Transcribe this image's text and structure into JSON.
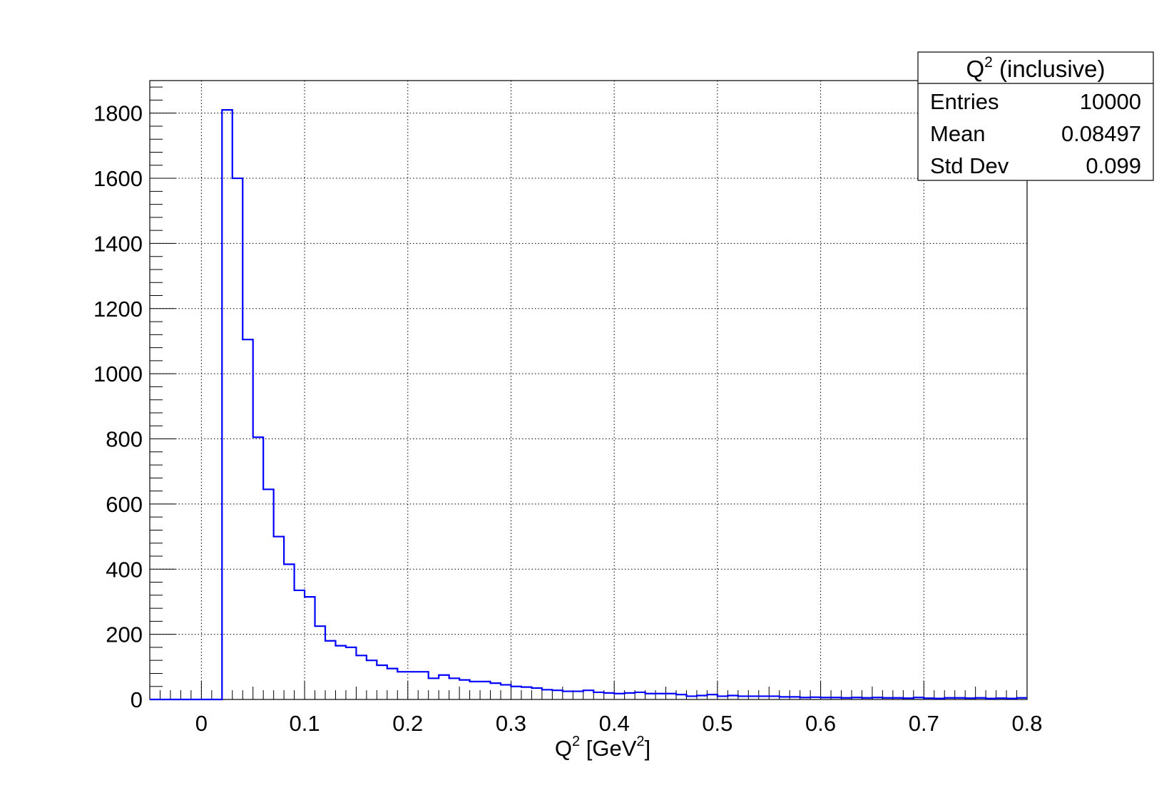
{
  "chart_data": {
    "type": "bar",
    "style": "step-histogram",
    "line_color": "#0000ff",
    "xlabel": "Q",
    "xlabel_sup": "2",
    "xlabel_unit_prefix": " [GeV",
    "xlabel_unit_sup": "2",
    "xlabel_unit_suffix": "]",
    "xlim": [
      -0.05,
      0.8
    ],
    "ylim": [
      0,
      1900
    ],
    "x_ticks": [
      "0",
      "0.1",
      "0.2",
      "0.3",
      "0.4",
      "0.5",
      "0.6",
      "0.7",
      "0.8"
    ],
    "x_tick_values": [
      0,
      0.1,
      0.2,
      0.3,
      0.4,
      0.5,
      0.6,
      0.7,
      0.8
    ],
    "y_ticks": [
      "0",
      "200",
      "400",
      "600",
      "800",
      "1000",
      "1200",
      "1400",
      "1600",
      "1800"
    ],
    "y_tick_values": [
      0,
      200,
      400,
      600,
      800,
      1000,
      1200,
      1400,
      1600,
      1800
    ],
    "grid": true,
    "bin_start": -0.05,
    "bin_width": 0.01,
    "values": [
      0,
      0,
      0,
      0,
      0,
      0,
      0,
      1810,
      1600,
      1105,
      805,
      645,
      500,
      415,
      335,
      315,
      225,
      180,
      165,
      160,
      135,
      120,
      105,
      95,
      85,
      85,
      85,
      65,
      75,
      65,
      60,
      55,
      55,
      50,
      45,
      40,
      38,
      35,
      30,
      28,
      25,
      25,
      28,
      22,
      20,
      18,
      20,
      22,
      18,
      18,
      18,
      15,
      10,
      12,
      15,
      10,
      12,
      10,
      10,
      10,
      10,
      8,
      8,
      6,
      7,
      6,
      6,
      5,
      6,
      5,
      6,
      5,
      5,
      4,
      6,
      4,
      3,
      5,
      5,
      4,
      5,
      3,
      4,
      3,
      5
    ]
  },
  "stats_box": {
    "title_main": "Q",
    "title_sup": "2",
    "title_rest": " (inclusive)",
    "rows": [
      {
        "label": "Entries",
        "value": "10000"
      },
      {
        "label": "Mean",
        "value": "0.08497"
      },
      {
        "label": "Std Dev",
        "value": "0.099"
      }
    ]
  }
}
